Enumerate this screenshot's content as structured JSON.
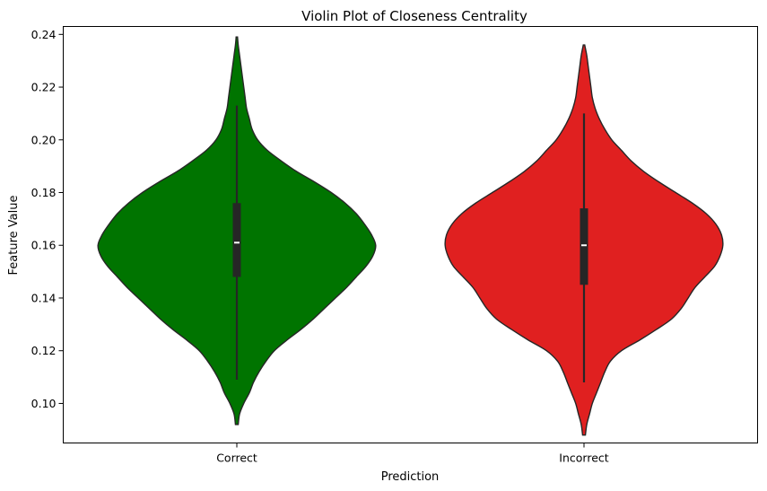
{
  "chart_data": {
    "type": "violin",
    "title": "Violin Plot of Closeness Centrality",
    "xlabel": "Prediction",
    "ylabel": "Feature Value",
    "categories": [
      "Correct",
      "Incorrect"
    ],
    "ylim": [
      0.085,
      0.243
    ],
    "yticks": [
      "0.10",
      "0.12",
      "0.14",
      "0.16",
      "0.18",
      "0.20",
      "0.22",
      "0.24"
    ],
    "grid": false,
    "series": [
      {
        "category": "Correct",
        "color": "#007400",
        "min": 0.092,
        "max": 0.239,
        "q1": 0.148,
        "median": 0.161,
        "q3": 0.176,
        "whisker_low": 0.109,
        "whisker_high": 0.213,
        "density": [
          [
            0.092,
            0.01
          ],
          [
            0.096,
            0.02
          ],
          [
            0.1,
            0.05
          ],
          [
            0.104,
            0.09
          ],
          [
            0.108,
            0.12
          ],
          [
            0.112,
            0.16
          ],
          [
            0.116,
            0.21
          ],
          [
            0.12,
            0.27
          ],
          [
            0.124,
            0.36
          ],
          [
            0.128,
            0.46
          ],
          [
            0.132,
            0.55
          ],
          [
            0.136,
            0.63
          ],
          [
            0.14,
            0.71
          ],
          [
            0.144,
            0.79
          ],
          [
            0.148,
            0.86
          ],
          [
            0.152,
            0.93
          ],
          [
            0.156,
            0.98
          ],
          [
            0.16,
            1.0
          ],
          [
            0.164,
            0.97
          ],
          [
            0.168,
            0.92
          ],
          [
            0.172,
            0.86
          ],
          [
            0.176,
            0.78
          ],
          [
            0.18,
            0.68
          ],
          [
            0.184,
            0.56
          ],
          [
            0.188,
            0.43
          ],
          [
            0.192,
            0.32
          ],
          [
            0.196,
            0.22
          ],
          [
            0.2,
            0.15
          ],
          [
            0.204,
            0.11
          ],
          [
            0.208,
            0.09
          ],
          [
            0.212,
            0.07
          ],
          [
            0.216,
            0.06
          ],
          [
            0.22,
            0.05
          ],
          [
            0.224,
            0.04
          ],
          [
            0.228,
            0.03
          ],
          [
            0.232,
            0.02
          ],
          [
            0.236,
            0.01
          ],
          [
            0.239,
            0.005
          ]
        ]
      },
      {
        "category": "Incorrect",
        "color": "#E02020",
        "min": 0.088,
        "max": 0.236,
        "q1": 0.145,
        "median": 0.16,
        "q3": 0.174,
        "whisker_low": 0.108,
        "whisker_high": 0.21,
        "density": [
          [
            0.088,
            0.01
          ],
          [
            0.092,
            0.02
          ],
          [
            0.096,
            0.04
          ],
          [
            0.1,
            0.06
          ],
          [
            0.104,
            0.09
          ],
          [
            0.108,
            0.12
          ],
          [
            0.112,
            0.15
          ],
          [
            0.116,
            0.19
          ],
          [
            0.12,
            0.27
          ],
          [
            0.124,
            0.4
          ],
          [
            0.128,
            0.52
          ],
          [
            0.132,
            0.63
          ],
          [
            0.136,
            0.7
          ],
          [
            0.14,
            0.75
          ],
          [
            0.144,
            0.8
          ],
          [
            0.148,
            0.87
          ],
          [
            0.152,
            0.94
          ],
          [
            0.156,
            0.98
          ],
          [
            0.16,
            1.0
          ],
          [
            0.164,
            0.99
          ],
          [
            0.168,
            0.95
          ],
          [
            0.172,
            0.88
          ],
          [
            0.176,
            0.78
          ],
          [
            0.18,
            0.66
          ],
          [
            0.184,
            0.54
          ],
          [
            0.188,
            0.43
          ],
          [
            0.192,
            0.34
          ],
          [
            0.196,
            0.27
          ],
          [
            0.2,
            0.2
          ],
          [
            0.204,
            0.15
          ],
          [
            0.208,
            0.11
          ],
          [
            0.212,
            0.08
          ],
          [
            0.216,
            0.06
          ],
          [
            0.22,
            0.05
          ],
          [
            0.224,
            0.04
          ],
          [
            0.228,
            0.03
          ],
          [
            0.232,
            0.02
          ],
          [
            0.236,
            0.005
          ]
        ]
      }
    ]
  }
}
